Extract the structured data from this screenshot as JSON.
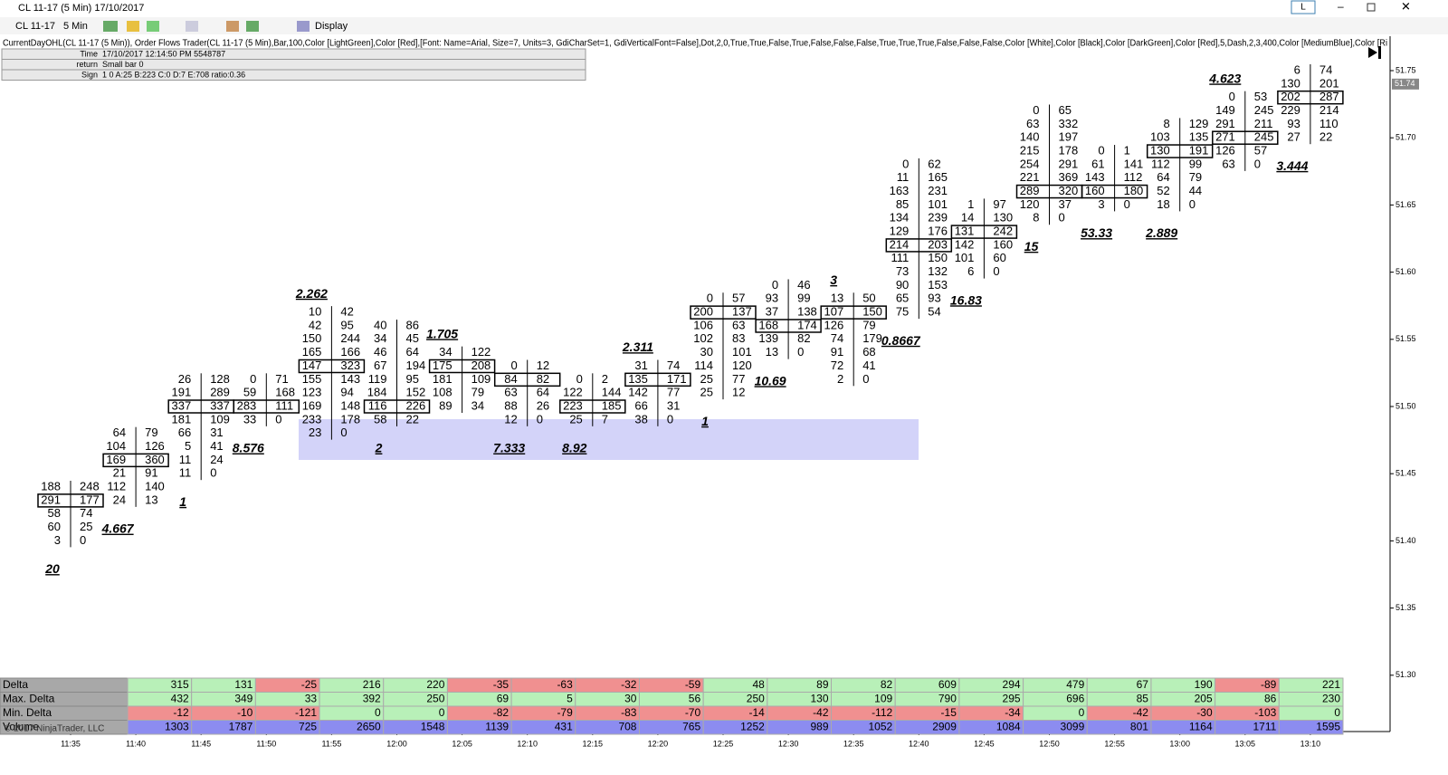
{
  "window": {
    "title": "CL 11-17 (5 Min)  17/10/2017",
    "toolbar": {
      "instrument": "CL 11-17",
      "interval": "5 Min",
      "display": "Display"
    },
    "button": "L"
  },
  "indicator_label": "CurrentDayOHL(CL 11-17 (5 Min)), Order Flows Trader(CL 11-17 (5 Min),Bar,100,Color [LightGreen],Color [Red],[Font: Name=Arial, Size=7, Units=3, GdiCharSet=1, GdiVerticalFont=False],Dot,2,0,True,True,False,True,False,False,False,True,True,True,False,False,False,Color [White],Color [Black],Color [DarkGreen],Color [Red],5,Dash,2,3,400,Color [MediumBlue],Color [Ri",
  "info": [
    [
      "Time",
      "17/10/2017 12:14:50 PM 5548787"
    ],
    [
      "return",
      "Small bar 0"
    ],
    [
      "Sign",
      "1 0 A:25 B:223 C:0 D:7 E:708 ratio:0.36"
    ]
  ],
  "price_axis": {
    "ticks": [
      51.75,
      51.7,
      51.65,
      51.6,
      51.55,
      51.5,
      51.45,
      51.4,
      51.35,
      51.3
    ],
    "tick_labels": [
      "51.75",
      "51.70",
      "51.65",
      "51.60",
      "51.55",
      "51.50",
      "51.45",
      "51.40",
      "51.35",
      "51.30"
    ],
    "current": 51.74
  },
  "time_axis": [
    "11:35",
    "11:40",
    "11:45",
    "11:50",
    "11:55",
    "12:00",
    "12:05",
    "12:10",
    "12:15",
    "12:20",
    "12:25",
    "12:30",
    "12:35",
    "12:40",
    "12:45",
    "12:50",
    "12:55",
    "13:00",
    "13:05",
    "13:10"
  ],
  "bars": [
    {
      "top": 51.44,
      "rows": [
        [
          188,
          248
        ],
        [
          291,
          177
        ],
        [
          58,
          74
        ],
        [
          60,
          25
        ],
        [
          3,
          0
        ]
      ],
      "ratio_bottom": "20"
    },
    {
      "top": 51.48,
      "rows": [
        [
          64,
          79
        ],
        [
          104,
          126
        ],
        [
          169,
          360
        ],
        [
          21,
          91
        ],
        [
          112,
          140
        ],
        [
          24,
          13
        ]
      ],
      "ratio_bottom": "4.667"
    },
    {
      "top": 51.52,
      "rows": [
        [
          26,
          128
        ],
        [
          191,
          289
        ],
        [
          337,
          337
        ],
        [
          181,
          109
        ],
        [
          66,
          31
        ],
        [
          5,
          41
        ],
        [
          11,
          24
        ],
        [
          11,
          0
        ]
      ],
      "ratio_bottom": "1"
    },
    {
      "top": 51.52,
      "rows": [
        [
          0,
          71
        ],
        [
          59,
          168
        ],
        [
          283,
          111
        ],
        [
          33,
          0
        ]
      ],
      "ratio_bottom": "8.576"
    },
    {
      "top": 51.57,
      "rows": [
        [
          10,
          42
        ],
        [
          42,
          95
        ],
        [
          150,
          244
        ],
        [
          165,
          166
        ],
        [
          147,
          323
        ],
        [
          155,
          143
        ],
        [
          123,
          94
        ],
        [
          169,
          148
        ],
        [
          233,
          178
        ],
        [
          23,
          0
        ]
      ],
      "ratio_top": "2.262"
    },
    {
      "top": 51.56,
      "rows": [
        [
          40,
          86
        ],
        [
          34,
          45
        ],
        [
          46,
          64
        ],
        [
          67,
          194
        ],
        [
          119,
          95
        ],
        [
          184,
          152
        ],
        [
          116,
          226
        ],
        [
          58,
          22
        ]
      ],
      "ratio_bottom": "2"
    },
    {
      "top": 51.54,
      "rows": [
        [
          34,
          122
        ],
        [
          175,
          208
        ],
        [
          181,
          109
        ],
        [
          108,
          79
        ],
        [
          89,
          34
        ]
      ],
      "ratio_top": "1.705"
    },
    {
      "top": 51.53,
      "rows": [
        [
          0,
          12
        ],
        [
          84,
          82
        ],
        [
          63,
          64
        ],
        [
          88,
          26
        ],
        [
          12,
          0
        ]
      ],
      "ratio_bottom": "7.333"
    },
    {
      "top": 51.52,
      "rows": [
        [
          0,
          2
        ],
        [
          122,
          144
        ],
        [
          223,
          185
        ],
        [
          25,
          7
        ]
      ],
      "ratio_bottom": "8.92"
    },
    {
      "top": 51.53,
      "rows": [
        [
          31,
          74
        ],
        [
          135,
          171
        ],
        [
          142,
          77
        ],
        [
          66,
          31
        ],
        [
          38,
          0
        ]
      ],
      "ratio_top": "2.311"
    },
    {
      "top": 51.58,
      "rows": [
        [
          0,
          57
        ],
        [
          200,
          137
        ],
        [
          106,
          63
        ],
        [
          102,
          83
        ],
        [
          30,
          101
        ],
        [
          114,
          120
        ],
        [
          25,
          77
        ],
        [
          25,
          12
        ]
      ],
      "ratio_bottom": "1"
    },
    {
      "top": 51.59,
      "rows": [
        [
          0,
          46
        ],
        [
          93,
          99
        ],
        [
          37,
          138
        ],
        [
          168,
          174
        ],
        [
          139,
          82
        ],
        [
          13,
          0
        ]
      ],
      "ratio_bottom": "10.69"
    },
    {
      "top": 51.58,
      "rows": [
        [
          13,
          50
        ],
        [
          107,
          150
        ],
        [
          126,
          79
        ],
        [
          74,
          179
        ],
        [
          91,
          68
        ],
        [
          72,
          41
        ],
        [
          2,
          0
        ]
      ],
      "ratio_top": "3"
    },
    {
      "top": 51.68,
      "rows": [
        [
          0,
          62
        ],
        [
          11,
          165
        ],
        [
          163,
          231
        ],
        [
          85,
          101
        ],
        [
          134,
          239
        ],
        [
          129,
          176
        ],
        [
          214,
          203
        ],
        [
          111,
          150
        ],
        [
          73,
          132
        ],
        [
          90,
          153
        ],
        [
          65,
          93
        ],
        [
          75,
          54
        ]
      ],
      "ratio_bottom": "0.8667"
    },
    {
      "top": 51.65,
      "rows": [
        [
          1,
          97
        ],
        [
          14,
          130
        ],
        [
          131,
          242
        ],
        [
          142,
          160
        ],
        [
          101,
          60
        ],
        [
          6,
          0
        ]
      ],
      "ratio_bottom": "16.83"
    },
    {
      "top": 51.72,
      "rows": [
        [
          0,
          65
        ],
        [
          63,
          332
        ],
        [
          140,
          197
        ],
        [
          215,
          178
        ],
        [
          254,
          291
        ],
        [
          221,
          369
        ],
        [
          289,
          320
        ],
        [
          120,
          37
        ],
        [
          8,
          0
        ]
      ],
      "ratio_bottom": "15"
    },
    {
      "top": 51.69,
      "rows": [
        [
          0,
          1
        ],
        [
          61,
          141
        ],
        [
          143,
          112
        ],
        [
          160,
          180
        ],
        [
          3,
          0
        ]
      ],
      "ratio_bottom": "53.33"
    },
    {
      "top": 51.71,
      "rows": [
        [
          8,
          129
        ],
        [
          103,
          135
        ],
        [
          130,
          191
        ],
        [
          112,
          99
        ],
        [
          64,
          79
        ],
        [
          52,
          44
        ],
        [
          18,
          0
        ]
      ],
      "ratio_bottom": "2.889"
    },
    {
      "top": 51.73,
      "rows": [
        [
          0,
          53
        ],
        [
          149,
          245
        ],
        [
          291,
          211
        ],
        [
          271,
          245
        ],
        [
          126,
          57
        ],
        [
          63,
          0
        ]
      ],
      "ratio_top": "4.623"
    },
    {
      "top": 51.75,
      "rows": [
        [
          6,
          74
        ],
        [
          130,
          201
        ],
        [
          202,
          287
        ],
        [
          229,
          214
        ],
        [
          93,
          110
        ],
        [
          27,
          22
        ]
      ],
      "ratio_bottom": "3.444"
    }
  ],
  "table": {
    "row_labels": [
      "Delta",
      "Max. Delta",
      "Min. Delta",
      "Volume"
    ],
    "rows": [
      [
        315,
        131,
        -25,
        216,
        220,
        -35,
        -63,
        -32,
        -59,
        48,
        89,
        82,
        609,
        294,
        479,
        67,
        190,
        -89,
        221
      ],
      [
        432,
        349,
        33,
        392,
        250,
        69,
        5,
        30,
        56,
        250,
        130,
        109,
        790,
        295,
        696,
        85,
        205,
        86,
        230
      ],
      [
        -12,
        -10,
        -121,
        0,
        0,
        -82,
        -79,
        -83,
        -70,
        -14,
        -42,
        -112,
        -15,
        -34,
        0,
        -42,
        -30,
        -103,
        0
      ],
      [
        1303,
        1787,
        725,
        2650,
        1548,
        1139,
        431,
        708,
        765,
        1252,
        989,
        1052,
        2909,
        1084,
        3099,
        801,
        1164,
        1711,
        1595
      ]
    ]
  },
  "copyright": "© 2017 NinjaTrader, LLC"
}
